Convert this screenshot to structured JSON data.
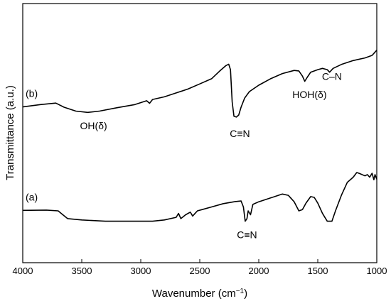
{
  "chart_data": {
    "type": "line",
    "xlabel": "Wavenumber (cm",
    "xlabel_sup": "−1",
    "xlabel_end": ")",
    "ylabel": "Transmittance (a.u.)",
    "xlim": [
      4000,
      1000
    ],
    "x_reversed": true,
    "x_ticks": [
      4000,
      3500,
      3000,
      2500,
      2000,
      1500,
      1000
    ],
    "ylim": [
      0,
      1
    ],
    "y_ticks_labeled": false,
    "grid": false,
    "legend": "none",
    "series": [
      {
        "label": "(b)",
        "color": "#000000",
        "points": [
          [
            4000,
            0.601
          ],
          [
            3850,
            0.61
          ],
          [
            3720,
            0.616
          ],
          [
            3650,
            0.6
          ],
          [
            3550,
            0.585
          ],
          [
            3450,
            0.58
          ],
          [
            3350,
            0.585
          ],
          [
            3200,
            0.598
          ],
          [
            3050,
            0.61
          ],
          [
            2950,
            0.625
          ],
          [
            2925,
            0.615
          ],
          [
            2900,
            0.63
          ],
          [
            2800,
            0.64
          ],
          [
            2700,
            0.655
          ],
          [
            2600,
            0.67
          ],
          [
            2500,
            0.69
          ],
          [
            2400,
            0.71
          ],
          [
            2330,
            0.74
          ],
          [
            2280,
            0.76
          ],
          [
            2255,
            0.766
          ],
          [
            2240,
            0.745
          ],
          [
            2225,
            0.62
          ],
          [
            2210,
            0.565
          ],
          [
            2190,
            0.562
          ],
          [
            2170,
            0.57
          ],
          [
            2150,
            0.6
          ],
          [
            2120,
            0.635
          ],
          [
            2080,
            0.66
          ],
          [
            2000,
            0.685
          ],
          [
            1900,
            0.71
          ],
          [
            1800,
            0.73
          ],
          [
            1700,
            0.742
          ],
          [
            1660,
            0.74
          ],
          [
            1630,
            0.72
          ],
          [
            1610,
            0.7
          ],
          [
            1590,
            0.715
          ],
          [
            1560,
            0.735
          ],
          [
            1500,
            0.745
          ],
          [
            1460,
            0.75
          ],
          [
            1420,
            0.745
          ],
          [
            1400,
            0.735
          ],
          [
            1370,
            0.75
          ],
          [
            1300,
            0.765
          ],
          [
            1200,
            0.78
          ],
          [
            1100,
            0.79
          ],
          [
            1040,
            0.8
          ],
          [
            1020,
            0.81
          ],
          [
            1000,
            0.82
          ]
        ]
      },
      {
        "label": "(a)",
        "color": "#000000",
        "points": [
          [
            4000,
            0.202
          ],
          [
            3800,
            0.203
          ],
          [
            3700,
            0.2
          ],
          [
            3660,
            0.185
          ],
          [
            3620,
            0.17
          ],
          [
            3500,
            0.165
          ],
          [
            3300,
            0.16
          ],
          [
            3100,
            0.16
          ],
          [
            2900,
            0.16
          ],
          [
            2800,
            0.165
          ],
          [
            2700,
            0.175
          ],
          [
            2680,
            0.19
          ],
          [
            2660,
            0.17
          ],
          [
            2620,
            0.185
          ],
          [
            2580,
            0.195
          ],
          [
            2560,
            0.18
          ],
          [
            2540,
            0.19
          ],
          [
            2520,
            0.2
          ],
          [
            2480,
            0.205
          ],
          [
            2400,
            0.215
          ],
          [
            2300,
            0.228
          ],
          [
            2200,
            0.236
          ],
          [
            2150,
            0.238
          ],
          [
            2130,
            0.215
          ],
          [
            2115,
            0.16
          ],
          [
            2100,
            0.17
          ],
          [
            2090,
            0.2
          ],
          [
            2070,
            0.185
          ],
          [
            2050,
            0.225
          ],
          [
            2000,
            0.235
          ],
          [
            1900,
            0.25
          ],
          [
            1800,
            0.265
          ],
          [
            1750,
            0.26
          ],
          [
            1700,
            0.235
          ],
          [
            1660,
            0.2
          ],
          [
            1630,
            0.205
          ],
          [
            1600,
            0.23
          ],
          [
            1560,
            0.255
          ],
          [
            1530,
            0.252
          ],
          [
            1500,
            0.23
          ],
          [
            1460,
            0.19
          ],
          [
            1420,
            0.16
          ],
          [
            1380,
            0.16
          ],
          [
            1350,
            0.2
          ],
          [
            1300,
            0.26
          ],
          [
            1250,
            0.31
          ],
          [
            1200,
            0.33
          ],
          [
            1170,
            0.348
          ],
          [
            1150,
            0.345
          ],
          [
            1100,
            0.335
          ],
          [
            1080,
            0.34
          ],
          [
            1060,
            0.33
          ],
          [
            1040,
            0.345
          ],
          [
            1025,
            0.32
          ],
          [
            1015,
            0.34
          ],
          [
            1000,
            0.322
          ]
        ]
      }
    ],
    "annotations": [
      {
        "text": "OH(δ)",
        "x": 3400,
        "y": 0.515,
        "anchor": "middle"
      },
      {
        "text": "C≡N",
        "x": 2160,
        "y": 0.485,
        "anchor": "middle"
      },
      {
        "text": "HOH(δ)",
        "x": 1570,
        "y": 0.635,
        "anchor": "middle"
      },
      {
        "text": "C–N",
        "x": 1380,
        "y": 0.705,
        "anchor": "middle"
      },
      {
        "text": "C≡N",
        "x": 2100,
        "y": 0.095,
        "anchor": "middle"
      }
    ]
  }
}
